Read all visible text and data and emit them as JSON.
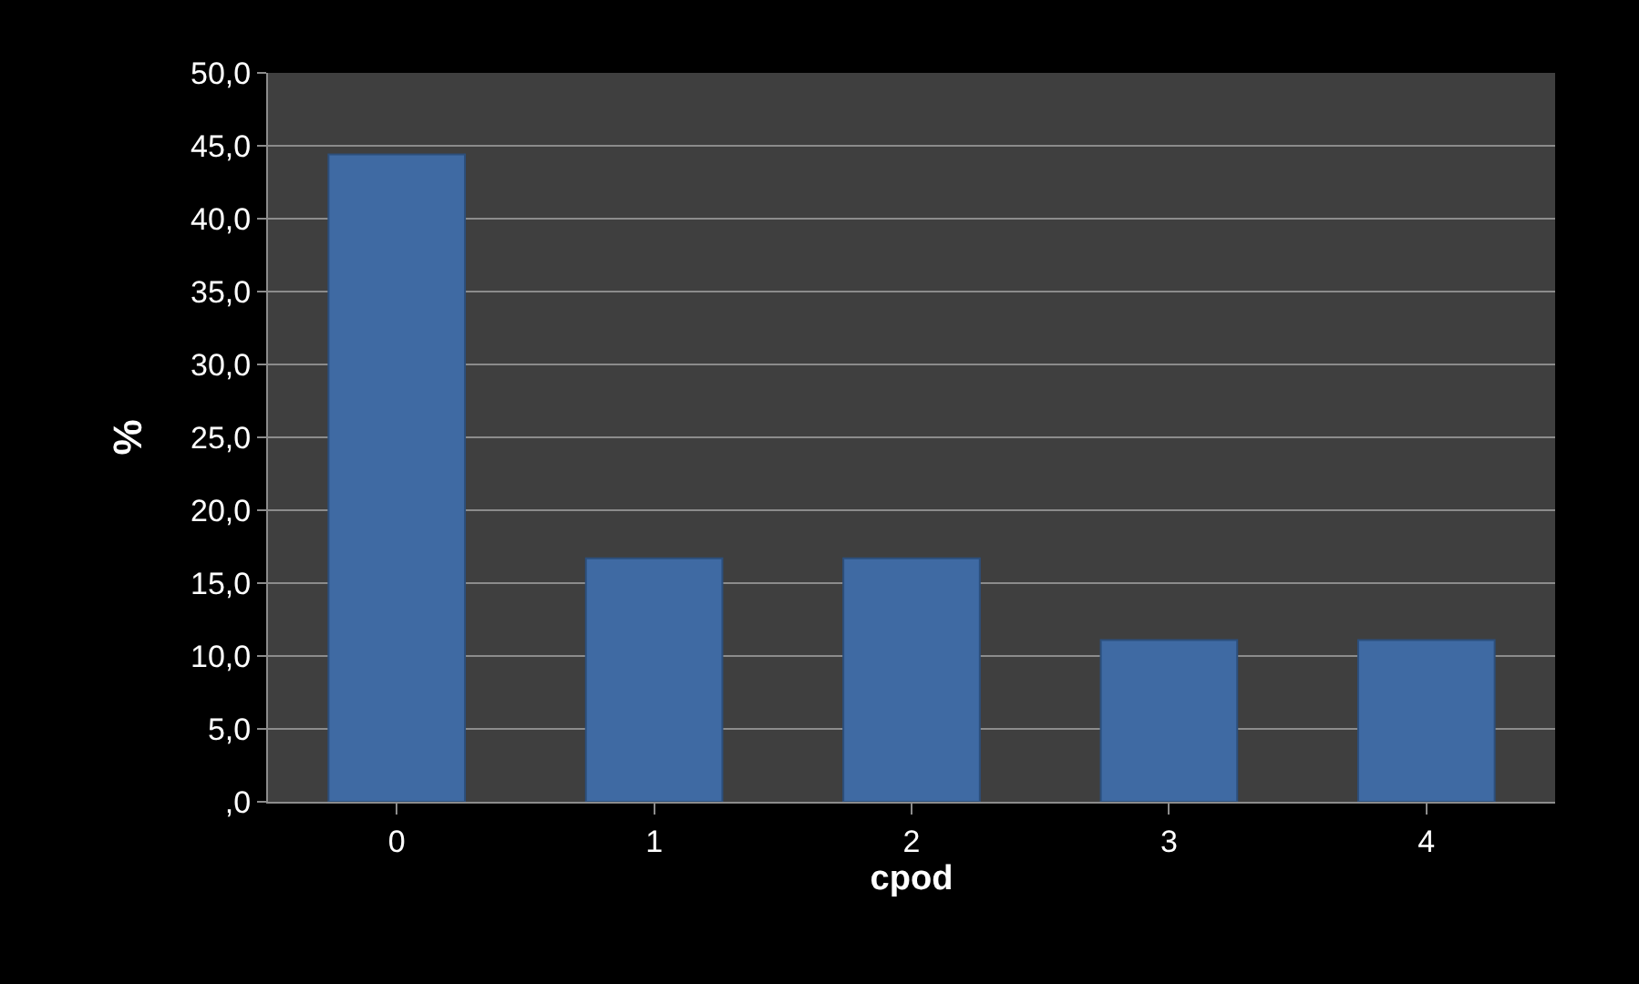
{
  "chart_data": {
    "type": "bar",
    "xlabel": "cpod",
    "ylabel": "%",
    "categories": [
      "0",
      "1",
      "2",
      "3",
      "4"
    ],
    "values": [
      44.4,
      16.7,
      16.7,
      11.1,
      11.1
    ],
    "color": "#3f6aa3",
    "ylim": [
      0,
      50
    ],
    "yticks": [
      {
        "value": 0,
        "label": ",0"
      },
      {
        "value": 5,
        "label": "5,0"
      },
      {
        "value": 10,
        "label": "10,0"
      },
      {
        "value": 15,
        "label": "15,0"
      },
      {
        "value": 20,
        "label": "20,0"
      },
      {
        "value": 25,
        "label": "25,0"
      },
      {
        "value": 30,
        "label": "30,0"
      },
      {
        "value": 35,
        "label": "35,0"
      },
      {
        "value": 40,
        "label": "40,0"
      },
      {
        "value": 45,
        "label": "45,0"
      },
      {
        "value": 50,
        "label": "50,0"
      }
    ],
    "grid": "y"
  }
}
